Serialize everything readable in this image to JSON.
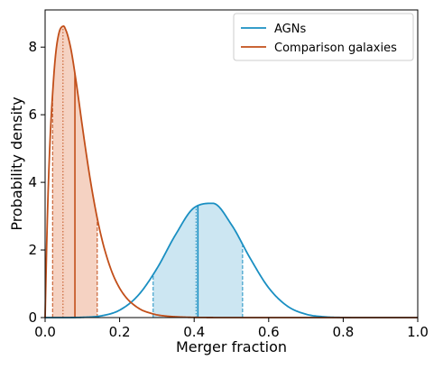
{
  "chart_data": {
    "type": "line",
    "xlabel": "Merger fraction",
    "ylabel": "Probability density",
    "xlim": [
      0.0,
      1.0
    ],
    "ylim": [
      0,
      9.1
    ],
    "xticks": [
      "0.0",
      "0.2",
      "0.4",
      "0.6",
      "0.8",
      "1.0"
    ],
    "xtick_values": [
      0.0,
      0.2,
      0.4,
      0.6,
      0.8,
      1.0
    ],
    "yticks": [
      "0",
      "2",
      "4",
      "6",
      "8"
    ],
    "ytick_values": [
      0,
      2,
      4,
      6,
      8
    ],
    "grid": false,
    "legend_position": "top-right",
    "series": [
      {
        "name": "AGNs",
        "color": "#1a8fc2",
        "fill_color": "#cce6f2",
        "x": [
          0.0,
          0.05,
          0.1,
          0.15,
          0.2,
          0.25,
          0.3,
          0.35,
          0.4,
          0.45,
          0.5,
          0.55,
          0.6,
          0.65,
          0.7,
          0.75,
          0.8,
          0.85,
          0.9,
          0.95,
          1.0
        ],
        "y": [
          0.0,
          0.0004,
          0.007,
          0.05,
          0.22,
          0.66,
          1.45,
          2.45,
          3.25,
          3.38,
          2.75,
          1.76,
          0.88,
          0.34,
          0.1,
          0.022,
          0.003,
          0.0003,
          0.0,
          0.0,
          0.0
        ],
        "mode": 0.405,
        "median": 0.41,
        "interval": [
          0.29,
          0.53
        ]
      },
      {
        "name": "Comparison galaxies",
        "color": "#c24f1a",
        "fill_color": "#f5d2c2",
        "x": [
          0.0,
          0.005,
          0.01,
          0.015,
          0.02,
          0.025,
          0.03,
          0.035,
          0.04,
          0.045,
          0.05,
          0.055,
          0.06,
          0.07,
          0.08,
          0.09,
          0.1,
          0.11,
          0.12,
          0.13,
          0.14,
          0.15,
          0.16,
          0.18,
          0.2,
          0.22,
          0.24,
          0.26,
          0.28,
          0.3,
          0.32,
          0.34,
          0.36,
          0.38,
          0.4,
          0.45,
          0.5
        ],
        "y": [
          0.0,
          2.5,
          4.33,
          5.65,
          6.6,
          7.4,
          7.96,
          8.31,
          8.52,
          8.6,
          8.62,
          8.52,
          8.37,
          7.9,
          7.22,
          6.45,
          5.65,
          4.88,
          4.16,
          3.51,
          2.93,
          2.43,
          2.0,
          1.33,
          0.87,
          0.56,
          0.36,
          0.22,
          0.14,
          0.08,
          0.05,
          0.03,
          0.018,
          0.01,
          0.006,
          0.001,
          0.0
        ],
        "mode": 0.048,
        "median": 0.08,
        "interval": [
          0.02,
          0.14
        ]
      }
    ]
  }
}
